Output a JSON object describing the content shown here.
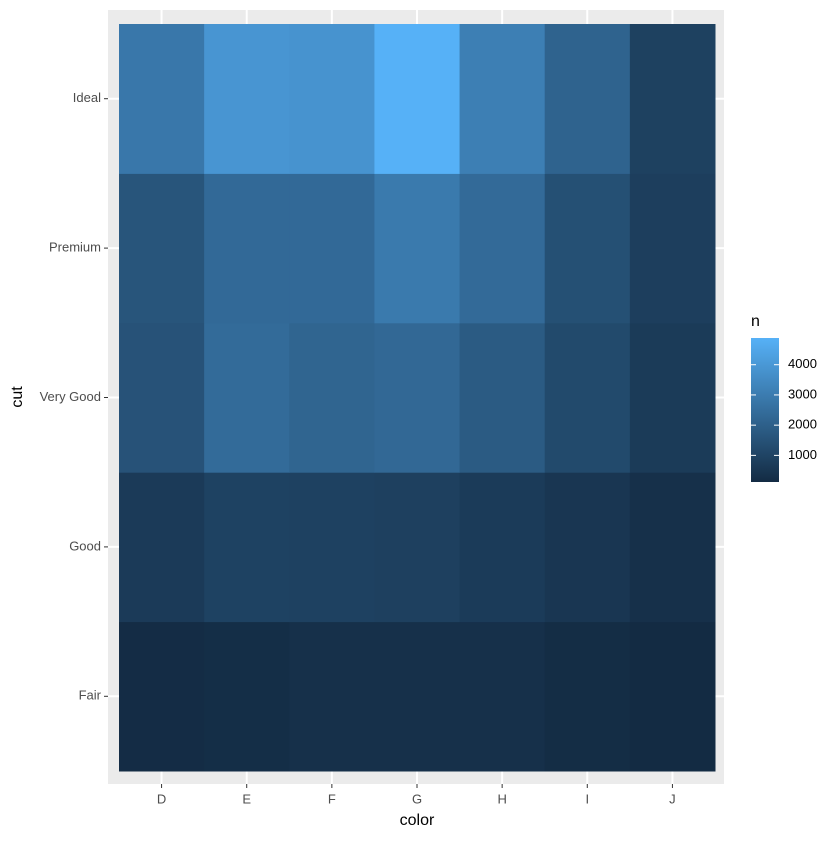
{
  "chart_data": {
    "type": "heatmap",
    "x_label": "color",
    "y_label": "cut",
    "legend_title": "n",
    "x_categories": [
      "D",
      "E",
      "F",
      "G",
      "H",
      "I",
      "J"
    ],
    "y_categories": [
      "Fair",
      "Good",
      "Very Good",
      "Premium",
      "Ideal"
    ],
    "values": [
      [
        163,
        224,
        312,
        314,
        303,
        175,
        119
      ],
      [
        662,
        933,
        909,
        871,
        702,
        522,
        307
      ],
      [
        1513,
        2400,
        2164,
        2299,
        1824,
        1204,
        678
      ],
      [
        1603,
        2337,
        2331,
        2924,
        2360,
        1428,
        808
      ],
      [
        2834,
        3903,
        3826,
        4884,
        3115,
        2093,
        896
      ]
    ],
    "color_low": "#132B43",
    "color_high": "#56B1F7",
    "clim": [
      119,
      4884
    ],
    "cticks": [
      1000,
      2000,
      3000,
      4000
    ]
  }
}
